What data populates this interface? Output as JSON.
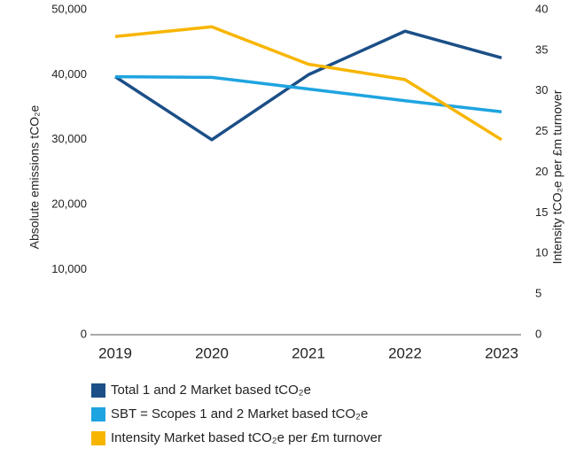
{
  "chart_data": {
    "type": "line",
    "categories": [
      "2019",
      "2020",
      "2021",
      "2022",
      "2023"
    ],
    "y_label": "Absolute emissions tCO₂e",
    "y2_label": "Intensity tCO₂e per £m turnover",
    "ylim": [
      0,
      50000
    ],
    "yticks": [
      0,
      {
        "value": 10000,
        "label": "10,000"
      },
      {
        "value": 20000,
        "label": "20,000"
      },
      {
        "value": 30000,
        "label": "30,000"
      },
      {
        "value": 40000,
        "label": "40,000"
      },
      {
        "value": 50000,
        "label": "50,000"
      }
    ],
    "y2lim": [
      0,
      40
    ],
    "y2ticks": [
      0,
      5,
      10,
      15,
      20,
      25,
      30,
      35,
      40
    ],
    "series": [
      {
        "name": "Total 1 and 2 Market based tCO₂e",
        "color": "#1b4f87",
        "values": [
          39700,
          30000,
          40000,
          46700,
          42600
        ]
      },
      {
        "name": "SBT = Scopes 1 and 2 Market based tCO₂e",
        "color": "#1ea4e0",
        "values": [
          39700,
          39600,
          37800,
          36000,
          34300
        ]
      },
      {
        "name": "Intensity Market based tCO₂e per £m turnover",
        "color": "#f7b500",
        "values": [
          36.7,
          37.9,
          33.3,
          31.4,
          24
        ],
        "axis": "y2"
      }
    ]
  }
}
